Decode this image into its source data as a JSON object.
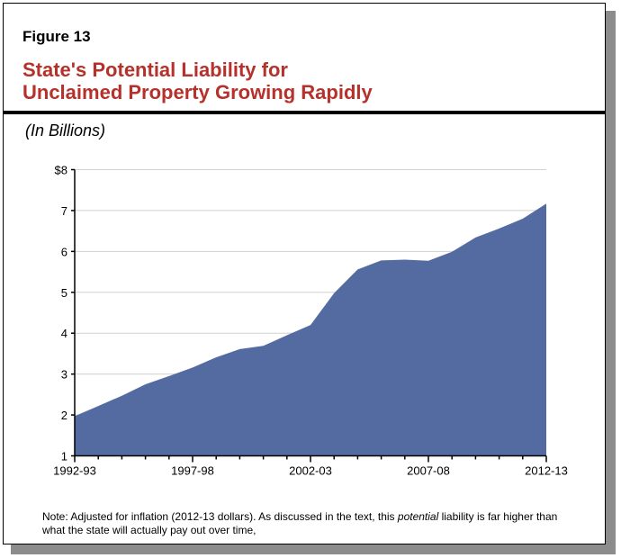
{
  "figure_label": "Figure 13",
  "title_line1": "State's Potential Liability for",
  "title_line2": "Unclaimed Property Growing Rapidly",
  "note_prefix": "Note: Adjusted for inflation (2012-13 dollars). As discussed in the text, this ",
  "note_italic": "potential",
  "note_suffix": " liability is far higher than what the state will actually pay out over time,",
  "chart_data": {
    "type": "area",
    "title": "State's Potential Liability for Unclaimed Property Growing Rapidly",
    "ylabel": "(In Billions)",
    "xlabel": "",
    "x": [
      "1992-93",
      "1993-94",
      "1994-95",
      "1995-96",
      "1996-97",
      "1997-98",
      "1998-99",
      "1999-00",
      "2000-01",
      "2001-02",
      "2002-03",
      "2003-04",
      "2004-05",
      "2005-06",
      "2006-07",
      "2007-08",
      "2008-09",
      "2009-10",
      "2010-11",
      "2011-12",
      "2012-13"
    ],
    "values": [
      1.97,
      2.22,
      2.47,
      2.75,
      2.95,
      3.16,
      3.41,
      3.61,
      3.69,
      3.95,
      4.2,
      4.98,
      5.56,
      5.78,
      5.8,
      5.77,
      5.99,
      6.34,
      6.56,
      6.8,
      7.17
    ],
    "x_tick_labels": [
      "1992-93",
      "1997-98",
      "2002-03",
      "2007-08",
      "2012-13"
    ],
    "y_tick_labels": [
      "1",
      "2",
      "3",
      "4",
      "5",
      "6",
      "7",
      "$8"
    ],
    "ylim": [
      1,
      8
    ],
    "grid": true,
    "fill_color": "#536ba1"
  }
}
